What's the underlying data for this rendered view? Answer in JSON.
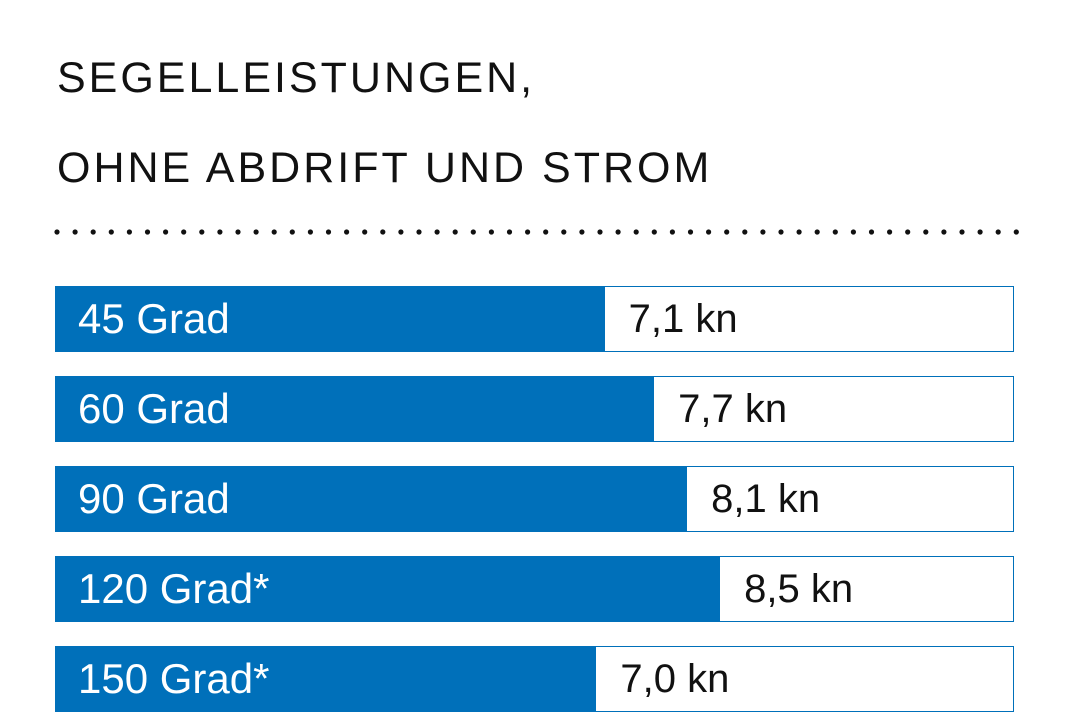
{
  "chart_data": {
    "type": "bar",
    "orientation": "horizontal",
    "title_lines": [
      "SEGELLEISTUNGEN,",
      "OHNE ABDRIFT UND STROM"
    ],
    "categories": [
      "45 Grad",
      "60 Grad",
      "90 Grad",
      "120 Grad*",
      "150 Grad*"
    ],
    "values": [
      7.1,
      7.7,
      8.1,
      8.5,
      7.0
    ],
    "value_labels": [
      "7,1 kn",
      "7,7 kn",
      "8,1 kn",
      "8,5 kn",
      "7,0 kn"
    ],
    "unit": "kn",
    "xlim": [
      0.45,
      12.05
    ],
    "grid": false,
    "colors": {
      "bar": "#0070ba",
      "track": "#ffffff",
      "text": "#111111"
    }
  }
}
